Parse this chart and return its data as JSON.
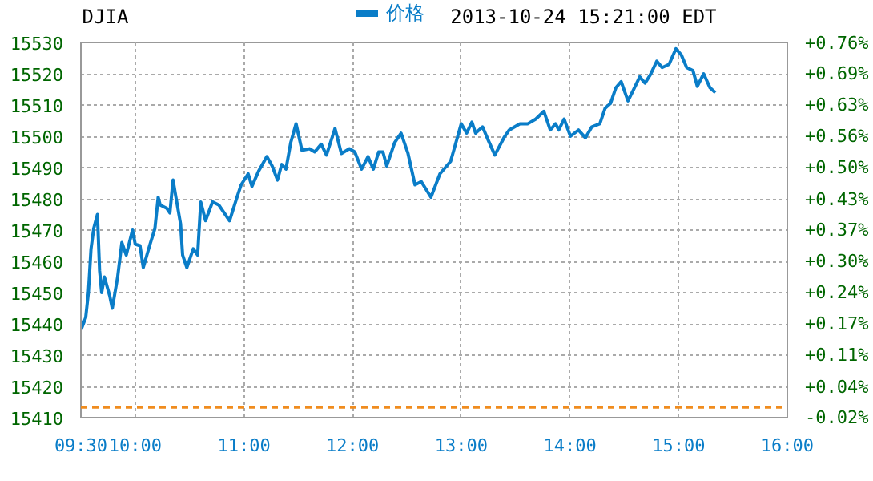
{
  "chart_data": {
    "type": "line",
    "title": "DJIA",
    "annotations": [
      "2013-10-24 15:21:00 EDT"
    ],
    "x": [
      9.5,
      9.544,
      9.569,
      9.593,
      9.618,
      9.652,
      9.672,
      9.691,
      9.716,
      9.765,
      9.789,
      9.838,
      9.877,
      9.917,
      9.975,
      10.0,
      10.044,
      10.074,
      10.132,
      10.181,
      10.211,
      10.23,
      10.289,
      10.319,
      10.348,
      10.377,
      10.417,
      10.436,
      10.475,
      10.534,
      10.574,
      10.603,
      10.647,
      10.711,
      10.77,
      10.868,
      10.941,
      10.975,
      11.039,
      11.074,
      11.137,
      11.211,
      11.26,
      11.309,
      11.348,
      11.387,
      11.431,
      11.48,
      11.534,
      11.603,
      11.652,
      11.711,
      11.76,
      11.838,
      11.897,
      11.971,
      12.02,
      12.083,
      12.142,
      12.191,
      12.24,
      12.279,
      12.314,
      12.387,
      12.446,
      12.51,
      12.574,
      12.632,
      12.721,
      12.804,
      12.902,
      13.0,
      13.049,
      13.098,
      13.132,
      13.196,
      13.245,
      13.309,
      13.392,
      13.441,
      13.539,
      13.613,
      13.686,
      13.76,
      13.819,
      13.868,
      13.897,
      13.946,
      14.005,
      14.078,
      14.142,
      14.201,
      14.275,
      14.324,
      14.373,
      14.422,
      14.471,
      14.534,
      14.593,
      14.642,
      14.691,
      14.74,
      14.799,
      14.848,
      14.912,
      14.975,
      15.025,
      15.074,
      15.132,
      15.172,
      15.23,
      15.289,
      15.338
    ],
    "series": [
      {
        "name": "价格",
        "color": "#0a7dc8",
        "values": [
          15438,
          15442,
          15450,
          15464,
          15470.5,
          15475,
          15457,
          15450,
          15455,
          15449,
          15445,
          15455,
          15466,
          15462,
          15470,
          15465.5,
          15465,
          15458,
          15465,
          15470.5,
          15480.5,
          15478,
          15477,
          15475.5,
          15486,
          15480,
          15472,
          15462,
          15458,
          15464,
          15462,
          15479,
          15473,
          15479,
          15478,
          15473,
          15481,
          15484.5,
          15488,
          15484,
          15489,
          15493.5,
          15490.5,
          15486,
          15491,
          15489.5,
          15498,
          15504,
          15495.5,
          15496,
          15495,
          15497.5,
          15494,
          15502.5,
          15494.5,
          15496,
          15495,
          15489.5,
          15493.5,
          15489.5,
          15495,
          15495,
          15490.5,
          15498,
          15501,
          15494.5,
          15484.5,
          15485.5,
          15480.5,
          15488,
          15492,
          15504,
          15501,
          15504.5,
          15501,
          15503,
          15499,
          15494,
          15499.5,
          15502,
          15504,
          15504,
          15505.5,
          15508,
          15502,
          15504,
          15502,
          15505.5,
          15500,
          15502,
          15499.5,
          15503,
          15504,
          15509,
          15510.5,
          15515.5,
          15517.5,
          15511.3,
          15515.5,
          15519,
          15517,
          15519.7,
          15524,
          15522,
          15523,
          15528,
          15526,
          15522,
          15521,
          15516,
          15520,
          15515.5,
          15514
        ]
      }
    ],
    "xlim": [
      9.5,
      16
    ],
    "xticks": [
      {
        "value": 9.5,
        "label": "09:30"
      },
      {
        "value": 10,
        "label": "10:00"
      },
      {
        "value": 11,
        "label": "11:00"
      },
      {
        "value": 12,
        "label": "12:00"
      },
      {
        "value": 13,
        "label": "13:00"
      },
      {
        "value": 14,
        "label": "14:00"
      },
      {
        "value": 15,
        "label": "15:00"
      },
      {
        "value": 16,
        "label": "16:00"
      }
    ],
    "ylim": [
      15410,
      15530
    ],
    "yticks": [
      15410,
      15420,
      15430,
      15440,
      15450,
      15460,
      15470,
      15480,
      15490,
      15500,
      15510,
      15520,
      15530
    ],
    "y2lim": [
      -0.021,
      0.757
    ],
    "y2ticks": [
      {
        "value": -0.021,
        "label": "-0.02%"
      },
      {
        "value": 0.043,
        "label": "+0.04%"
      },
      {
        "value": 0.108,
        "label": "+0.11%"
      },
      {
        "value": 0.173,
        "label": "+0.17%"
      },
      {
        "value": 0.238,
        "label": "+0.24%"
      },
      {
        "value": 0.303,
        "label": "+0.30%"
      },
      {
        "value": 0.368,
        "label": "+0.37%"
      },
      {
        "value": 0.432,
        "label": "+0.43%"
      },
      {
        "value": 0.497,
        "label": "+0.50%"
      },
      {
        "value": 0.562,
        "label": "+0.56%"
      },
      {
        "value": 0.627,
        "label": "+0.63%"
      },
      {
        "value": 0.692,
        "label": "+0.69%"
      },
      {
        "value": 0.757,
        "label": "+0.76%"
      }
    ],
    "ref_lines": [
      {
        "axis": "y",
        "value": 15413.3,
        "color": "#f08c1e",
        "line_style": "dashed"
      }
    ],
    "grid": true,
    "legend": "top",
    "marker": "none",
    "line_style": "solid"
  }
}
